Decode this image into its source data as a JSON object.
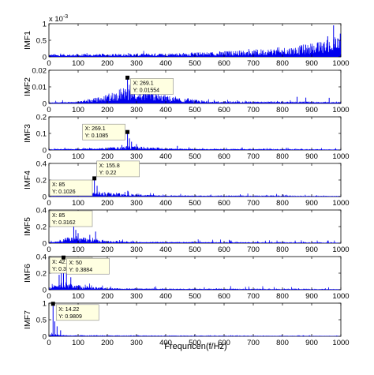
{
  "figure": {
    "xlabel": "Frequncen(f/Hz)"
  },
  "chart_data": [
    {
      "type": "line",
      "ylabel": "IMF1",
      "xlim": [
        0,
        1000
      ],
      "ylim": [
        0,
        1
      ],
      "y_multiplier": "x 10",
      "y_multiplier_exp": "-3",
      "yticks": [
        {
          "v": 0,
          "label": "0"
        },
        {
          "v": 0.5,
          "label": "0.5"
        },
        {
          "v": 1,
          "label": "1"
        }
      ],
      "xticks": [
        0,
        100,
        200,
        300,
        400,
        500,
        600,
        700,
        800,
        900,
        1000
      ],
      "series": [
        {
          "color": "#0000ee",
          "envelope": [
            [
              0,
              0.05
            ],
            [
              100,
              0.05
            ],
            [
              300,
              0.06
            ],
            [
              500,
              0.08
            ],
            [
              700,
              0.13
            ],
            [
              850,
              0.2
            ],
            [
              950,
              0.3
            ],
            [
              1000,
              0.4
            ]
          ],
          "noise": 0.09,
          "peaks": [
            [
              955,
              0.62
            ],
            [
              975,
              0.95
            ],
            [
              990,
              0.55
            ],
            [
              998,
              0.7
            ]
          ]
        }
      ],
      "annotations": []
    },
    {
      "type": "line",
      "ylabel": "IMF2",
      "xlim": [
        0,
        1000
      ],
      "ylim": [
        0,
        0.02
      ],
      "yticks": [
        {
          "v": 0,
          "label": "0"
        },
        {
          "v": 0.01,
          "label": "0.01"
        },
        {
          "v": 0.02,
          "label": "0.02"
        }
      ],
      "xticks": [
        0,
        100,
        200,
        300,
        400,
        500,
        600,
        700,
        800,
        900,
        1000
      ],
      "series": [
        {
          "color": "#0000ee",
          "envelope": [
            [
              0,
              0.0003
            ],
            [
              100,
              0.0008
            ],
            [
              180,
              0.0025
            ],
            [
              230,
              0.005
            ],
            [
              269,
              0.006
            ],
            [
              320,
              0.0055
            ],
            [
              380,
              0.0035
            ],
            [
              450,
              0.0018
            ],
            [
              550,
              0.0009
            ],
            [
              700,
              0.0007
            ],
            [
              1000,
              0.0006
            ]
          ],
          "noise": 0.0018,
          "peaks": [
            [
              269.1,
              0.01554
            ],
            [
              262,
              0.0085
            ],
            [
              330,
              0.0068
            ],
            [
              850,
              0.004
            ],
            [
              880,
              0.0035
            ],
            [
              960,
              0.0034
            ]
          ]
        }
      ],
      "annotations": [
        {
          "x": 269.1,
          "y": 0.01554,
          "lines": [
            "X: 269.1",
            "Y: 0.01554"
          ],
          "side": "right"
        }
      ]
    },
    {
      "type": "line",
      "ylabel": "IMF3",
      "xlim": [
        0,
        1000
      ],
      "ylim": [
        0,
        0.2
      ],
      "yticks": [
        {
          "v": 0,
          "label": "0"
        },
        {
          "v": 0.1,
          "label": "0.1"
        },
        {
          "v": 0.2,
          "label": "0.2"
        }
      ],
      "xticks": [
        0,
        100,
        200,
        300,
        400,
        500,
        600,
        700,
        800,
        900,
        1000
      ],
      "series": [
        {
          "color": "#0000ee",
          "envelope": [
            [
              0,
              0.002
            ],
            [
              150,
              0.006
            ],
            [
              230,
              0.01
            ],
            [
              269,
              0.016
            ],
            [
              320,
              0.012
            ],
            [
              420,
              0.006
            ],
            [
              550,
              0.003
            ],
            [
              1000,
              0.001
            ]
          ],
          "noise": 0.012,
          "peaks": [
            [
              269.1,
              0.1085
            ],
            [
              276,
              0.07
            ],
            [
              283,
              0.05
            ],
            [
              300,
              0.035
            ],
            [
              250,
              0.03
            ],
            [
              440,
              0.025
            ]
          ]
        }
      ],
      "annotations": [
        {
          "x": 269.1,
          "y": 0.1085,
          "lines": [
            "X: 269.1",
            "Y: 0.1085"
          ],
          "side": "left"
        }
      ]
    },
    {
      "type": "line",
      "ylabel": "IMF4",
      "xlim": [
        0,
        1000
      ],
      "ylim": [
        0,
        0.4
      ],
      "yticks": [
        {
          "v": 0,
          "label": "0"
        },
        {
          "v": 0.2,
          "label": "0.2"
        },
        {
          "v": 0.4,
          "label": "0.4"
        }
      ],
      "xticks": [
        0,
        100,
        200,
        300,
        400,
        500,
        600,
        700,
        800,
        900,
        1000
      ],
      "series": [
        {
          "color": "#0000ee",
          "envelope": [
            [
              0,
              0.005
            ],
            [
              60,
              0.02
            ],
            [
              100,
              0.03
            ],
            [
              155,
              0.04
            ],
            [
              200,
              0.03
            ],
            [
              280,
              0.02
            ],
            [
              400,
              0.008
            ],
            [
              1000,
              0.002
            ]
          ],
          "noise": 0.03,
          "peaks": [
            [
              155.8,
              0.22
            ],
            [
              85,
              0.1026
            ],
            [
              165,
              0.13
            ],
            [
              140,
              0.09
            ],
            [
              270,
              0.07
            ]
          ]
        }
      ],
      "annotations": [
        {
          "x": 85,
          "y": 0.1026,
          "lines": [
            "X: 85",
            "Y: 0.1026"
          ],
          "side": "left"
        },
        {
          "x": 155.8,
          "y": 0.22,
          "lines": [
            "X: 155.8",
            "Y: 0.22"
          ],
          "side": "up"
        }
      ]
    },
    {
      "type": "line",
      "ylabel": "IMF5",
      "xlim": [
        0,
        1000
      ],
      "ylim": [
        0,
        0.4
      ],
      "yticks": [
        {
          "v": 0,
          "label": "0"
        },
        {
          "v": 0.2,
          "label": "0.2"
        },
        {
          "v": 0.4,
          "label": "0.4"
        }
      ],
      "xticks": [
        0,
        100,
        200,
        300,
        400,
        500,
        600,
        700,
        800,
        900,
        1000
      ],
      "series": [
        {
          "color": "#0000ee",
          "envelope": [
            [
              0,
              0.005
            ],
            [
              50,
              0.03
            ],
            [
              85,
              0.06
            ],
            [
              120,
              0.04
            ],
            [
              200,
              0.02
            ],
            [
              300,
              0.01
            ],
            [
              1000,
              0.002
            ]
          ],
          "noise": 0.04,
          "peaks": [
            [
              85,
              0.3162
            ],
            [
              92,
              0.16
            ],
            [
              100,
              0.12
            ],
            [
              140,
              0.1
            ],
            [
              160,
              0.14
            ]
          ]
        }
      ],
      "annotations": [
        {
          "x": 85,
          "y": 0.3162,
          "lines": [
            "X: 85",
            "Y: 0.3162"
          ],
          "side": "left"
        }
      ]
    },
    {
      "type": "line",
      "ylabel": "IMF6",
      "xlim": [
        0,
        1000
      ],
      "ylim": [
        0,
        0.4
      ],
      "yticks": [
        {
          "v": 0,
          "label": "0"
        },
        {
          "v": 0.2,
          "label": "0.2"
        },
        {
          "v": 0.4,
          "label": "0.4"
        }
      ],
      "xticks": [
        0,
        100,
        200,
        300,
        400,
        500,
        600,
        700,
        800,
        900,
        1000
      ],
      "series": [
        {
          "color": "#0000ee",
          "envelope": [
            [
              0,
              0.01
            ],
            [
              30,
              0.04
            ],
            [
              50,
              0.06
            ],
            [
              80,
              0.04
            ],
            [
              150,
              0.02
            ],
            [
              250,
              0.01
            ],
            [
              1000,
              0.002
            ]
          ],
          "noise": 0.04,
          "peaks": [
            [
              42.5,
              0.3522
            ],
            [
              50,
              0.3884
            ],
            [
              60,
              0.2
            ],
            [
              75,
              0.15
            ],
            [
              35,
              0.18
            ]
          ]
        }
      ],
      "annotations": [
        {
          "x": 42.5,
          "y": 0.3522,
          "lines": [
            "X: 42.5",
            "Y: 0.3522"
          ],
          "side": "left"
        },
        {
          "x": 50,
          "y": 0.3884,
          "lines": [
            "X: 50",
            "Y: 0.3884"
          ],
          "side": "right"
        }
      ]
    },
    {
      "type": "line",
      "ylabel": "IMF7",
      "xlim": [
        0,
        1000
      ],
      "ylim": [
        0,
        1
      ],
      "yticks": [
        {
          "v": 0,
          "label": "0"
        },
        {
          "v": 0.5,
          "label": "0.5"
        },
        {
          "v": 1,
          "label": "1"
        }
      ],
      "xticks": [
        0,
        100,
        200,
        300,
        400,
        500,
        600,
        700,
        800,
        900,
        1000
      ],
      "series": [
        {
          "color": "#0000ee",
          "envelope": [
            [
              0,
              0.02
            ],
            [
              14,
              0.08
            ],
            [
              30,
              0.04
            ],
            [
              60,
              0.02
            ],
            [
              120,
              0.01
            ],
            [
              1000,
              0.002
            ]
          ],
          "noise": 0.03,
          "peaks": [
            [
              14.22,
              0.9809
            ],
            [
              20,
              0.45
            ],
            [
              28,
              0.3
            ],
            [
              40,
              0.18
            ]
          ]
        }
      ],
      "annotations": [
        {
          "x": 14.22,
          "y": 0.9809,
          "lines": [
            "X: 14.22",
            "Y: 0.9809"
          ],
          "side": "right"
        }
      ]
    }
  ]
}
